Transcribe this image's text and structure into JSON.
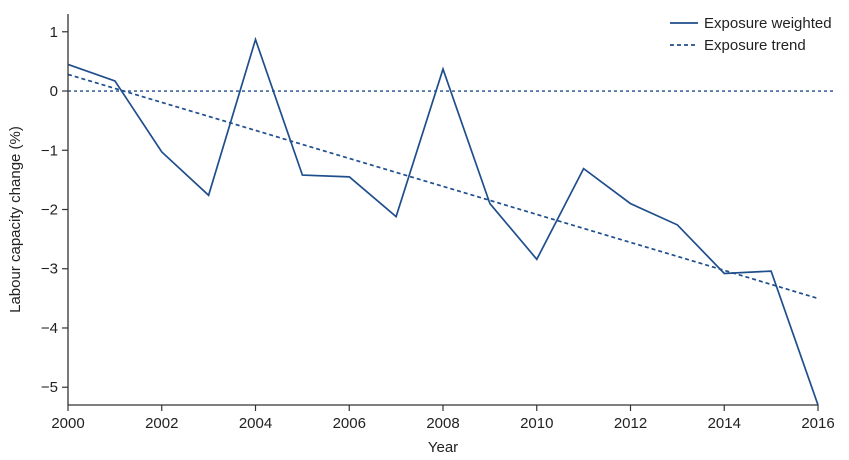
{
  "chart_data": {
    "type": "line",
    "xlabel": "Year",
    "ylabel": "Labour capacity change (%)",
    "xlim": [
      2000,
      2016
    ],
    "ylim": [
      -5.3,
      1.3
    ],
    "x_ticks": [
      2000,
      2002,
      2004,
      2006,
      2008,
      2010,
      2012,
      2014,
      2016
    ],
    "y_ticks": [
      1,
      0,
      -1,
      -2,
      -3,
      -4,
      -5
    ],
    "y_tick_labels": [
      "1",
      "0",
      "−1",
      "−2",
      "−3",
      "−4",
      "−5"
    ],
    "zero_reference_line": true,
    "grid": false,
    "legend_position": "top-right",
    "series": [
      {
        "name": "Exposure weighted",
        "style": "solid",
        "color": "#1f4e8c",
        "x": [
          2000,
          2001,
          2002,
          2003,
          2004,
          2005,
          2006,
          2007,
          2008,
          2009,
          2010,
          2011,
          2012,
          2013,
          2014,
          2015,
          2016
        ],
        "y": [
          0.45,
          0.17,
          -1.03,
          -1.76,
          0.87,
          -1.42,
          -1.45,
          -2.12,
          0.37,
          -1.9,
          -2.84,
          -1.31,
          -1.9,
          -2.26,
          -3.08,
          -3.04,
          -5.3
        ]
      },
      {
        "name": "Exposure trend",
        "style": "dashed",
        "color": "#1f4e8c",
        "x": [
          2000,
          2016
        ],
        "y": [
          0.28,
          -3.5
        ]
      }
    ]
  }
}
